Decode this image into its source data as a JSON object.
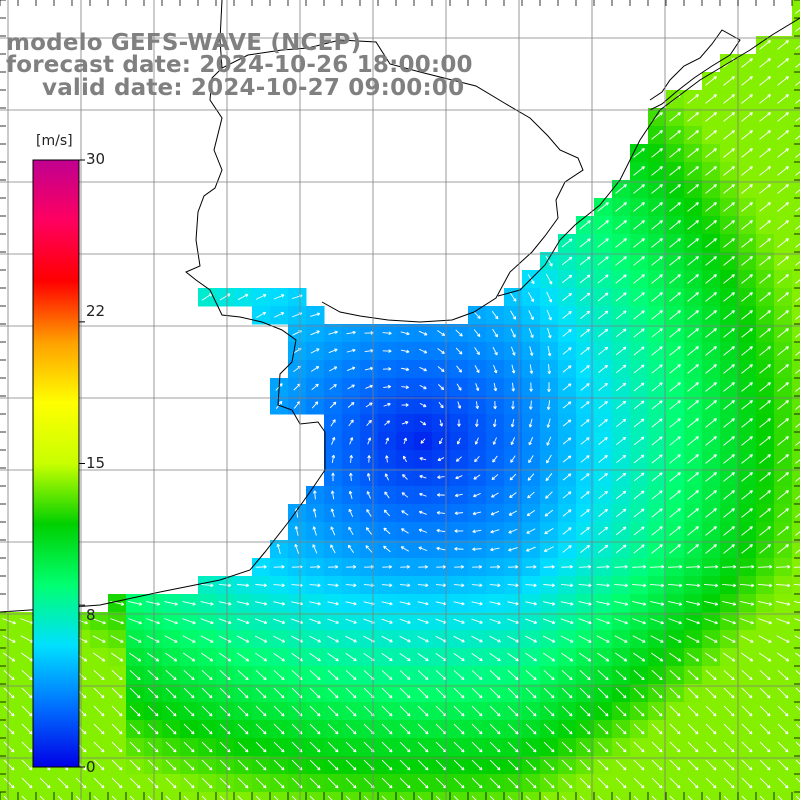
{
  "header": {
    "line1": "modelo GEFS-WAVE (NCEP)",
    "line2": "forecast date: 2024-10-26 18:00:00",
    "line3": "valid date: 2024-10-27 09:00:00"
  },
  "colorbar": {
    "unit": "[m/s]",
    "min": 0,
    "max": 30,
    "ticks": [
      "30",
      "22",
      "15",
      "8",
      "0"
    ],
    "tick_values": [
      30,
      22,
      15,
      8,
      0
    ],
    "colors": [
      "#0000e6",
      "#0070ff",
      "#00e0ff",
      "#00ff70",
      "#00d000",
      "#c8ff00",
      "#ffff00",
      "#ffa000",
      "#ff0000",
      "#ff0060",
      "#c00090"
    ]
  },
  "map": {
    "field": "wind speed and direction",
    "colors": {
      "land": "#ffffff",
      "coastline": "#000000",
      "gridlines": "#7f7f7f",
      "vectors": "#ffffff"
    }
  }
}
